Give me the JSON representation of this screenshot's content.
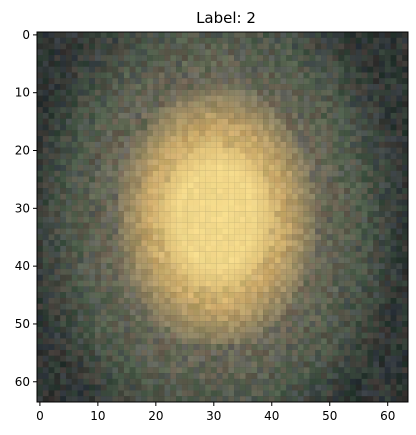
{
  "title": "Label: 2",
  "image": {
    "description_name": "galaxy-image",
    "grid_size": [
      64,
      64
    ],
    "colors": {
      "core": "#fde390",
      "mid": "#d7b36c",
      "outer": "#7d7860",
      "halo": "#53604d",
      "noise_green": "#2f4d3b",
      "noise_red": "#5c3c3d",
      "noise_blue": "#3b3f5d",
      "background": "#2b332f"
    }
  },
  "axes": {
    "x_ticks": [
      {
        "value": 0,
        "label": "0"
      },
      {
        "value": 10,
        "label": "10"
      },
      {
        "value": 20,
        "label": "20"
      },
      {
        "value": 30,
        "label": "30"
      },
      {
        "value": 40,
        "label": "40"
      },
      {
        "value": 50,
        "label": "50"
      },
      {
        "value": 60,
        "label": "60"
      }
    ],
    "y_ticks": [
      {
        "value": 0,
        "label": "0"
      },
      {
        "value": 10,
        "label": "10"
      },
      {
        "value": 20,
        "label": "20"
      },
      {
        "value": 30,
        "label": "30"
      },
      {
        "value": 40,
        "label": "40"
      },
      {
        "value": 50,
        "label": "50"
      },
      {
        "value": 60,
        "label": "60"
      }
    ],
    "x_range": [
      -0.5,
      63.5
    ],
    "y_range": [
      63.5,
      -0.5
    ]
  }
}
